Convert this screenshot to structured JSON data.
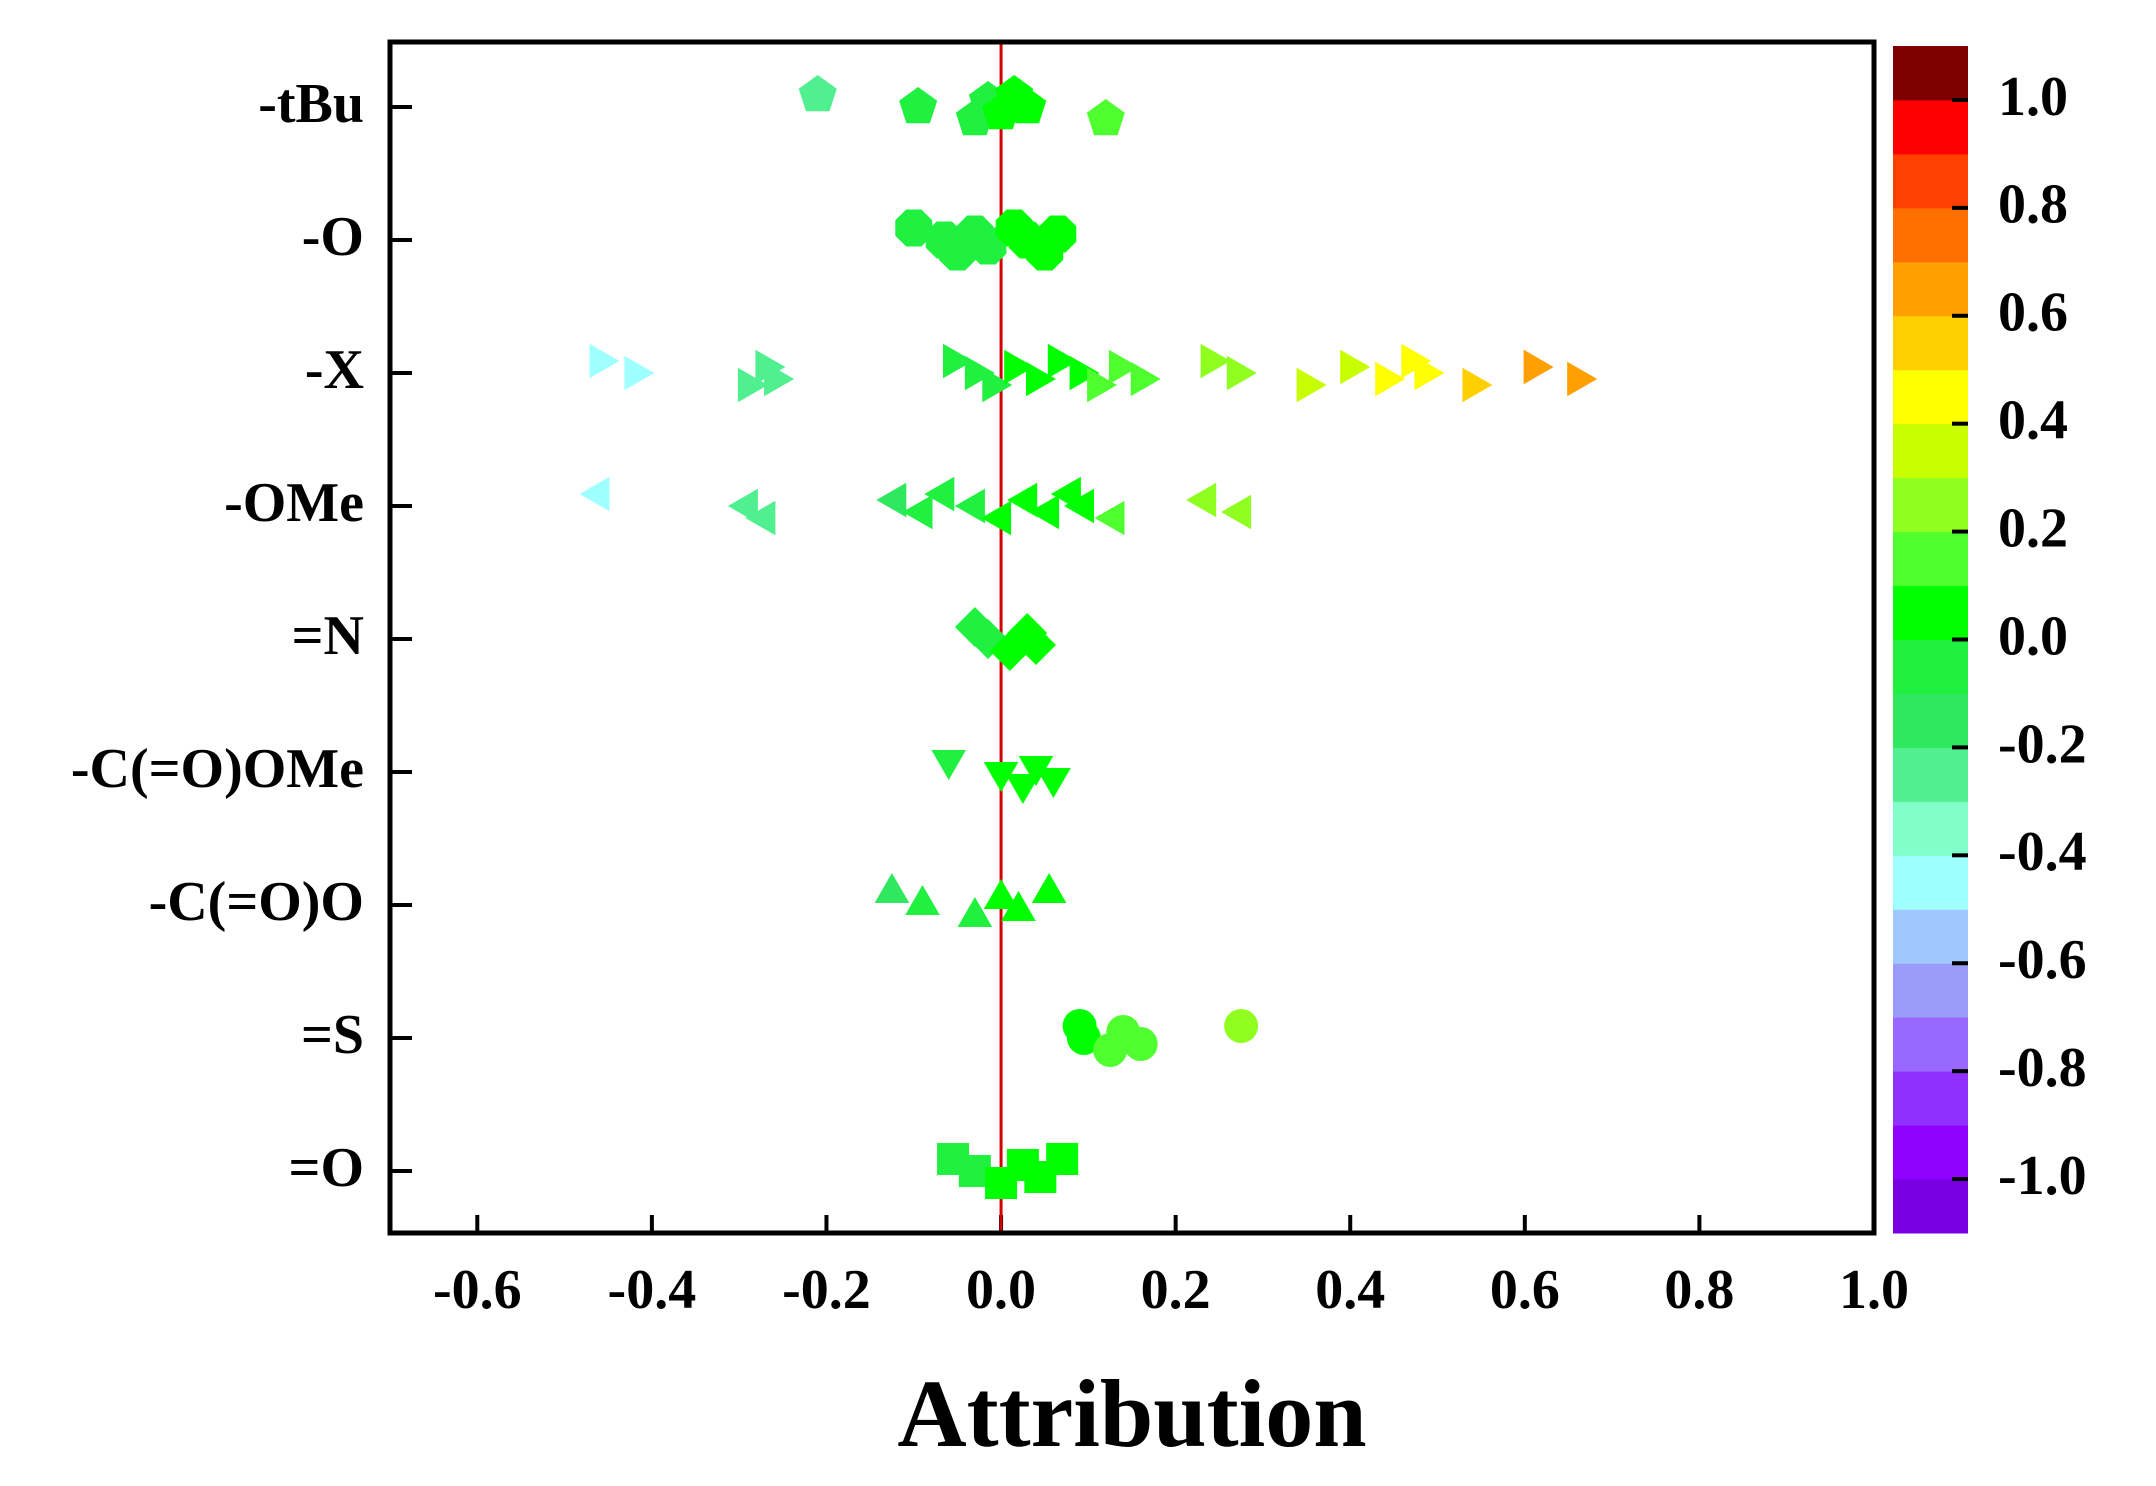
{
  "chart_data": {
    "type": "strip",
    "xlabel": "Attribution",
    "xlim": [
      -0.7,
      1.0
    ],
    "xticks": [
      -0.6,
      -0.4,
      -0.2,
      {
        "value": 0,
        "label": "0.0"
      },
      0.2,
      0.4,
      0.6,
      0.8,
      {
        "value": 1,
        "label": "1.0"
      }
    ],
    "vline": 0,
    "vline_color": "#d40000",
    "clim": [
      -1.1,
      1.1
    ],
    "cticks": [
      {
        "value": -1,
        "label": "-1.0"
      },
      -0.8,
      -0.6,
      -0.4,
      -0.2,
      {
        "value": 0,
        "label": "0.0"
      },
      0.2,
      0.4,
      0.6,
      0.8,
      {
        "value": 1,
        "label": "1.0"
      }
    ],
    "colormap": [
      "#7800e0",
      "#9000ff",
      "#9030ff",
      "#9868ff",
      "#9a9af8",
      "#a0c8ff",
      "#a0ffff",
      "#80ffc8",
      "#50f090",
      "#30e860",
      "#20f040",
      "#00ff00",
      "#50ff30",
      "#90ff20",
      "#c8ff00",
      "#ffff00",
      "#ffd000",
      "#ffa000",
      "#ff7000",
      "#ff4000",
      "#ff0000",
      "#800000"
    ],
    "series": [
      {
        "name": "-tBu",
        "marker": "pentagon",
        "values": [
          -0.21,
          -0.095,
          -0.03,
          -0.015,
          0,
          0.015,
          0.03,
          0.12
        ]
      },
      {
        "name": "-O",
        "marker": "hexagon",
        "values": [
          -0.1,
          -0.065,
          -0.05,
          -0.03,
          -0.015,
          0.015,
          0.03,
          0.05,
          0.065
        ]
      },
      {
        "name": "-X",
        "marker": "triangle-right",
        "values": [
          -0.46,
          -0.42,
          -0.29,
          -0.27,
          -0.26,
          -0.055,
          -0.03,
          -0.01,
          0.015,
          0.04,
          0.065,
          0.09,
          0.11,
          0.135,
          0.16,
          0.24,
          0.27,
          0.35,
          0.4,
          0.44,
          0.47,
          0.485,
          0.54,
          0.61,
          0.66
        ]
      },
      {
        "name": "-OMe",
        "marker": "triangle-left",
        "values": [
          -0.46,
          -0.29,
          -0.27,
          -0.12,
          -0.09,
          -0.065,
          -0.03,
          0,
          0.03,
          0.055,
          0.08,
          0.095,
          0.13,
          0.235,
          0.275
        ]
      },
      {
        "name": "=N",
        "marker": "diamond",
        "values": [
          -0.03,
          -0.015,
          0.01,
          0.03,
          0.04
        ]
      },
      {
        "name": "-C(=O)OMe",
        "marker": "triangle-down",
        "values": [
          -0.06,
          0,
          0.025,
          0.04,
          0.06
        ]
      },
      {
        "name": "-C(=O)O",
        "marker": "triangle-up",
        "values": [
          -0.125,
          -0.09,
          -0.03,
          0,
          0.02,
          0.055
        ]
      },
      {
        "name": "=S",
        "marker": "circle",
        "values": [
          0.09,
          0.095,
          0.125,
          0.14,
          0.16,
          0.275
        ]
      },
      {
        "name": "=O",
        "marker": "square",
        "values": [
          -0.055,
          -0.03,
          0,
          0.025,
          0.045,
          0.07
        ]
      }
    ]
  }
}
